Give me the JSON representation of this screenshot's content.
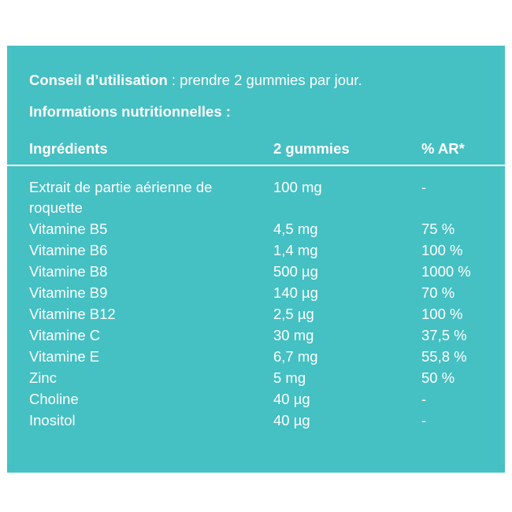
{
  "usage": {
    "label": "Conseil d’utilisation",
    "text": " : prendre 2 gummies par jour."
  },
  "nutrition_title": "Informations nutritionnelles :",
  "table": {
    "headers": [
      "Ingrédients",
      "2 gummies",
      "% AR*"
    ],
    "rows": [
      {
        "ingredient": "Extrait de partie aérienne de roquette",
        "amount": "100 mg",
        "ar": "-"
      },
      {
        "ingredient": "Vitamine B5",
        "amount": "4,5 mg",
        "ar": "75 %"
      },
      {
        "ingredient": "Vitamine B6",
        "amount": "1,4 mg",
        "ar": "100 %"
      },
      {
        "ingredient": "Vitamine B8",
        "amount": "500 µg",
        "ar": "1000 %"
      },
      {
        "ingredient": "Vitamine B9",
        "amount": "140 µg",
        "ar": "70 %"
      },
      {
        "ingredient": "Vitamine B12",
        "amount": "2,5 µg",
        "ar": "100 %"
      },
      {
        "ingredient": "Vitamine C",
        "amount": "30 mg",
        "ar": "37,5 %"
      },
      {
        "ingredient": "Vitamine E",
        "amount": "6,7 mg",
        "ar": "55,8 %"
      },
      {
        "ingredient": "Zinc",
        "amount": "5 mg",
        "ar": "50 %"
      },
      {
        "ingredient": "Choline",
        "amount": "40 µg",
        "ar": "-"
      },
      {
        "ingredient": "Inositol",
        "amount": "40 µg",
        "ar": "-"
      }
    ]
  },
  "colors": {
    "panel_background": "#45c0c3",
    "text": "#ffffff"
  }
}
